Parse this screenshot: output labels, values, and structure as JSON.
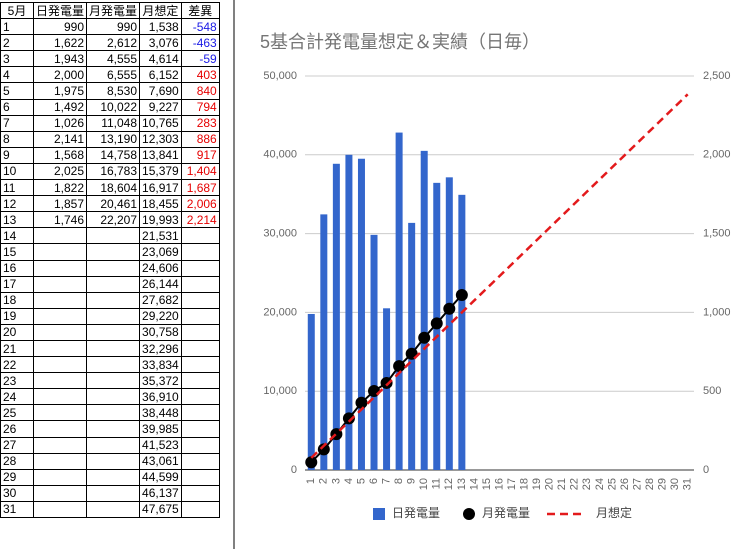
{
  "table": {
    "headers": [
      "5月",
      "日発電量",
      "月発電量",
      "月想定",
      "差異"
    ],
    "rows": [
      [
        "1",
        "990",
        "990",
        "1,538",
        "-548"
      ],
      [
        "2",
        "1,622",
        "2,612",
        "3,076",
        "-463"
      ],
      [
        "3",
        "1,943",
        "4,555",
        "4,614",
        "-59"
      ],
      [
        "4",
        "2,000",
        "6,555",
        "6,152",
        "403"
      ],
      [
        "5",
        "1,975",
        "8,530",
        "7,690",
        "840"
      ],
      [
        "6",
        "1,492",
        "10,022",
        "9,227",
        "794"
      ],
      [
        "7",
        "1,026",
        "11,048",
        "10,765",
        "283"
      ],
      [
        "8",
        "2,141",
        "13,190",
        "12,303",
        "886"
      ],
      [
        "9",
        "1,568",
        "14,758",
        "13,841",
        "917"
      ],
      [
        "10",
        "2,025",
        "16,783",
        "15,379",
        "1,404"
      ],
      [
        "11",
        "1,822",
        "18,604",
        "16,917",
        "1,687"
      ],
      [
        "12",
        "1,857",
        "20,461",
        "18,455",
        "2,006"
      ],
      [
        "13",
        "1,746",
        "22,207",
        "19,993",
        "2,214"
      ],
      [
        "14",
        null,
        null,
        "21,531",
        null
      ],
      [
        "15",
        null,
        null,
        "23,069",
        null
      ],
      [
        "16",
        null,
        null,
        "24,606",
        null
      ],
      [
        "17",
        null,
        null,
        "26,144",
        null
      ],
      [
        "18",
        null,
        null,
        "27,682",
        null
      ],
      [
        "19",
        null,
        null,
        "29,220",
        null
      ],
      [
        "20",
        null,
        null,
        "30,758",
        null
      ],
      [
        "21",
        null,
        null,
        "32,296",
        null
      ],
      [
        "22",
        null,
        null,
        "33,834",
        null
      ],
      [
        "23",
        null,
        null,
        "35,372",
        null
      ],
      [
        "24",
        null,
        null,
        "36,910",
        null
      ],
      [
        "25",
        null,
        null,
        "38,448",
        null
      ],
      [
        "26",
        null,
        null,
        "39,985",
        null
      ],
      [
        "27",
        null,
        null,
        "41,523",
        null
      ],
      [
        "28",
        null,
        null,
        "43,061",
        null
      ],
      [
        "29",
        null,
        null,
        "44,599",
        null
      ],
      [
        "30",
        null,
        null,
        "46,137",
        null
      ],
      [
        "31",
        null,
        null,
        "47,675",
        null
      ]
    ]
  },
  "chart_data": {
    "type": "combo",
    "title": "5基合計発電量想定＆実績（日毎）",
    "categories": [
      "1",
      "2",
      "3",
      "4",
      "5",
      "6",
      "7",
      "8",
      "9",
      "10",
      "11",
      "12",
      "13",
      "14",
      "15",
      "16",
      "17",
      "18",
      "19",
      "20",
      "21",
      "22",
      "23",
      "24",
      "25",
      "26",
      "27",
      "28",
      "29",
      "30",
      "31"
    ],
    "series": [
      {
        "name": "日発電量",
        "type": "bar",
        "axis": "y2",
        "color": "#3366cc",
        "values": [
          990,
          1622,
          1943,
          2000,
          1975,
          1492,
          1026,
          2141,
          1568,
          2025,
          1822,
          1857,
          1746,
          null,
          null,
          null,
          null,
          null,
          null,
          null,
          null,
          null,
          null,
          null,
          null,
          null,
          null,
          null,
          null,
          null,
          null
        ]
      },
      {
        "name": "月発電量",
        "type": "line-markers",
        "color": "#000000",
        "values": [
          990,
          2612,
          4555,
          6555,
          8530,
          10022,
          11048,
          13190,
          14758,
          16783,
          18604,
          20461,
          22207,
          null,
          null,
          null,
          null,
          null,
          null,
          null,
          null,
          null,
          null,
          null,
          null,
          null,
          null,
          null,
          null,
          null,
          null
        ]
      },
      {
        "name": "月想定",
        "type": "dashed-line",
        "color": "#e31a1c",
        "values": [
          1538,
          3076,
          4614,
          6152,
          7690,
          9227,
          10765,
          12303,
          13841,
          15379,
          16917,
          18455,
          19993,
          21531,
          23069,
          24606,
          26144,
          27682,
          29220,
          30758,
          32296,
          33834,
          35372,
          36910,
          38448,
          39985,
          41523,
          43061,
          44599,
          46137,
          47675
        ]
      }
    ],
    "ylim": [
      0,
      50000
    ],
    "yticks": [
      0,
      {
        "value": 10000,
        "label": "10,000"
      },
      {
        "value": 20000,
        "label": "20,000"
      },
      {
        "value": 30000,
        "label": "30,000"
      },
      {
        "value": 40000,
        "label": "40,000"
      },
      {
        "value": 50000,
        "label": "50,000"
      }
    ],
    "y2lim": [
      0,
      2500
    ],
    "y2ticks": [
      0,
      500,
      {
        "value": 1000,
        "label": "1,000"
      },
      {
        "value": 1500,
        "label": "1,500"
      },
      {
        "value": 2000,
        "label": "2,000"
      },
      {
        "value": 2500,
        "label": "2,500"
      }
    ],
    "grid": true,
    "legend": "bottom"
  }
}
